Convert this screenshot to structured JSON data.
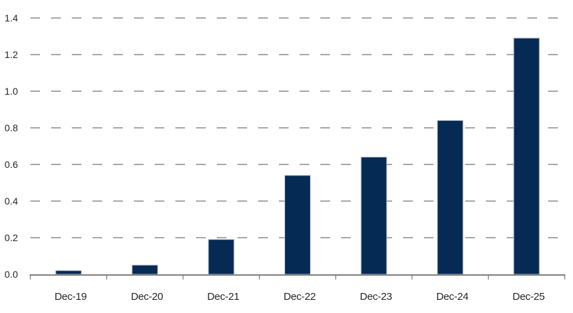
{
  "chart_data": {
    "type": "bar",
    "title": "",
    "xlabel": "",
    "ylabel": "",
    "categories": [
      "Dec-19",
      "Dec-20",
      "Dec-21",
      "Dec-22",
      "Dec-23",
      "Dec-24",
      "Dec-25"
    ],
    "values": [
      0.02,
      0.05,
      0.19,
      0.54,
      0.64,
      0.84,
      1.29
    ],
    "ylim": [
      0,
      1.4
    ],
    "y_ticks": [
      0.0,
      0.2,
      0.4,
      0.6,
      0.8,
      1.0,
      1.2,
      1.4
    ],
    "y_tick_labels": [
      "0.0",
      "0.2",
      "0.4",
      "0.6",
      "0.8",
      "1.0",
      "1.2",
      "1.4"
    ],
    "grid": "horizontal-dashed",
    "legend_position": "none",
    "colors": {
      "bar_fill": "#052a54",
      "bar_border": "#b0b7c0",
      "gridline": "#a8a8a8",
      "axis": "#7f7f7f",
      "tick_text": "#262626",
      "background": "#ffffff"
    }
  }
}
